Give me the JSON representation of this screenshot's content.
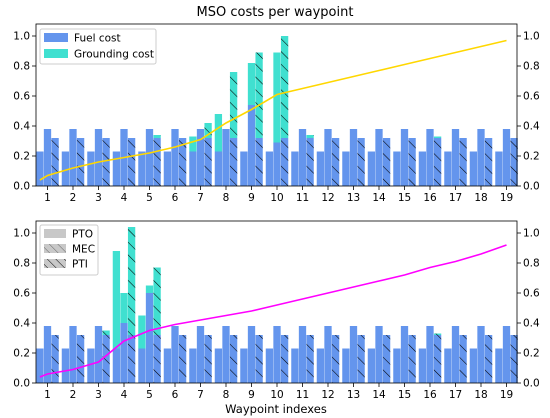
{
  "colors": {
    "fuel": "#6495ed",
    "grounding": "#40e0d0",
    "line_top": "#ffd700",
    "line_bottom": "#ff00ff",
    "legend_patch": "#c8c8c8"
  },
  "chart_data": [
    {
      "type": "bar",
      "title": "MSO costs per waypoint",
      "xlabel": "",
      "ylabel": "",
      "categories": [
        1,
        2,
        3,
        4,
        5,
        6,
        7,
        8,
        9,
        10,
        11,
        12,
        13,
        14,
        15,
        16,
        17,
        18,
        19
      ],
      "ylim": [
        0,
        1.08
      ],
      "yticks": [
        "0.0",
        "0.2",
        "0.4",
        "0.6",
        "0.8",
        "1.0"
      ],
      "legend": {
        "placement": "top-left",
        "entries": [
          "Fuel cost",
          "Grounding cost"
        ]
      },
      "sub_bars": [
        "PTO",
        "MEC",
        "PTI"
      ],
      "series": [
        {
          "name": "Fuel cost",
          "PTO": [
            0.23,
            0.23,
            0.23,
            0.23,
            0.23,
            0.23,
            0.23,
            0.23,
            0.23,
            0.23,
            0.23,
            0.23,
            0.23,
            0.23,
            0.23,
            0.23,
            0.23,
            0.23,
            0.23
          ],
          "MEC": [
            0.38,
            0.38,
            0.38,
            0.38,
            0.38,
            0.38,
            0.38,
            0.38,
            0.54,
            0.29,
            0.38,
            0.38,
            0.38,
            0.38,
            0.38,
            0.38,
            0.38,
            0.38,
            0.38
          ],
          "PTI": [
            0.32,
            0.32,
            0.32,
            0.32,
            0.32,
            0.32,
            0.32,
            0.32,
            0.32,
            0.32,
            0.32,
            0.32,
            0.32,
            0.32,
            0.32,
            0.32,
            0.32,
            0.32,
            0.32
          ]
        },
        {
          "name": "Grounding cost",
          "PTO": [
            0,
            0,
            0,
            0,
            0,
            0,
            0.1,
            0.25,
            0,
            0,
            0,
            0,
            0,
            0,
            0,
            0,
            0,
            0,
            0
          ],
          "MEC": [
            0,
            0,
            0,
            0,
            0,
            0,
            0,
            0,
            0.28,
            0.6,
            0,
            0,
            0,
            0,
            0,
            0,
            0,
            0,
            0
          ],
          "PTI": [
            0,
            0,
            0,
            0,
            0.02,
            0,
            0.1,
            0.44,
            0.57,
            0.68,
            0.02,
            0,
            0,
            0,
            0,
            0.01,
            0,
            0,
            0
          ]
        }
      ],
      "line": {
        "x": [
          0.7,
          1,
          2,
          3,
          4,
          5,
          6,
          7,
          8,
          9,
          10,
          11,
          12,
          13,
          14,
          15,
          16,
          17,
          18,
          19
        ],
        "y": [
          0.04,
          0.07,
          0.12,
          0.16,
          0.19,
          0.22,
          0.26,
          0.31,
          0.42,
          0.51,
          0.61,
          0.65,
          0.69,
          0.73,
          0.77,
          0.81,
          0.85,
          0.89,
          0.93,
          0.97
        ]
      }
    },
    {
      "type": "bar",
      "title": "",
      "xlabel": "Waypoint indexes",
      "ylabel": "",
      "categories": [
        1,
        2,
        3,
        4,
        5,
        6,
        7,
        8,
        9,
        10,
        11,
        12,
        13,
        14,
        15,
        16,
        17,
        18,
        19
      ],
      "ylim": [
        0,
        1.08
      ],
      "yticks": [
        "0.0",
        "0.2",
        "0.4",
        "0.6",
        "0.8",
        "1.0"
      ],
      "legend": {
        "placement": "top-left",
        "entries": [
          "PTO",
          "MEC",
          "PTI"
        ]
      },
      "sub_bars": [
        "PTO",
        "MEC",
        "PTI"
      ],
      "series": [
        {
          "name": "Fuel cost",
          "PTO": [
            0.23,
            0.23,
            0.23,
            0.23,
            0.23,
            0.23,
            0.23,
            0.23,
            0.23,
            0.23,
            0.23,
            0.23,
            0.23,
            0.23,
            0.23,
            0.23,
            0.23,
            0.23,
            0.23
          ],
          "MEC": [
            0.38,
            0.38,
            0.38,
            0.4,
            0.6,
            0.38,
            0.38,
            0.38,
            0.38,
            0.38,
            0.38,
            0.38,
            0.38,
            0.38,
            0.38,
            0.38,
            0.38,
            0.38,
            0.38
          ],
          "PTI": [
            0.32,
            0.32,
            0.32,
            0.32,
            0.32,
            0.32,
            0.32,
            0.32,
            0.32,
            0.32,
            0.32,
            0.32,
            0.32,
            0.32,
            0.32,
            0.32,
            0.32,
            0.32,
            0.32
          ]
        },
        {
          "name": "Grounding cost",
          "PTO": [
            0,
            0,
            0,
            0.65,
            0.22,
            0,
            0,
            0,
            0,
            0,
            0,
            0,
            0,
            0,
            0,
            0,
            0,
            0,
            0
          ],
          "MEC": [
            0,
            0,
            0,
            0.2,
            0.05,
            0,
            0,
            0,
            0,
            0,
            0,
            0,
            0,
            0,
            0,
            0,
            0,
            0,
            0
          ],
          "PTI": [
            0,
            0,
            0.03,
            0.72,
            0.45,
            0,
            0,
            0,
            0,
            0,
            0,
            0,
            0,
            0,
            0,
            0.01,
            0,
            0,
            0
          ]
        }
      ],
      "line": {
        "x": [
          0.7,
          1,
          2,
          3,
          4,
          5,
          6,
          7,
          8,
          9,
          10,
          11,
          12,
          13,
          14,
          15,
          16,
          17,
          18,
          19
        ],
        "y": [
          0.04,
          0.06,
          0.09,
          0.14,
          0.28,
          0.35,
          0.39,
          0.42,
          0.45,
          0.48,
          0.52,
          0.56,
          0.6,
          0.64,
          0.68,
          0.72,
          0.77,
          0.81,
          0.86,
          0.92
        ]
      }
    }
  ]
}
